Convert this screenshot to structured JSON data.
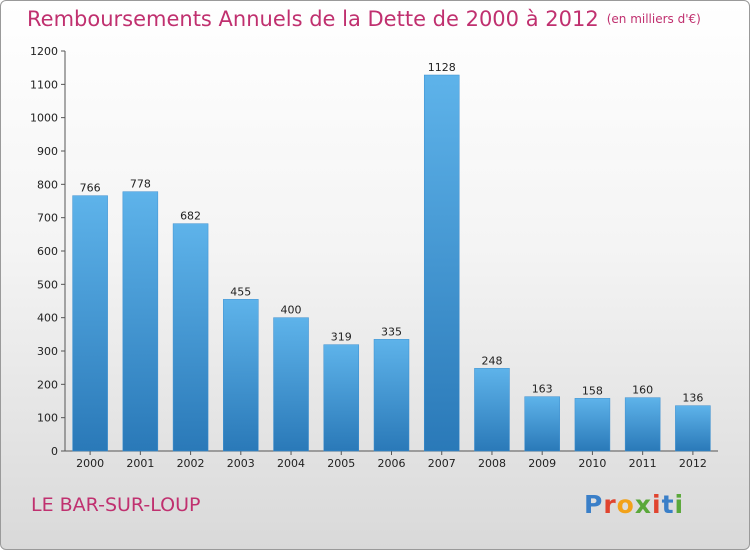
{
  "header": {
    "title": "Remboursements Annuels de la Dette de 2000 à 2012",
    "unit": "(en milliers d'€)"
  },
  "footer": {
    "commune": "LE BAR-SUR-LOUP",
    "logo_letters": [
      "P",
      "r",
      "o",
      "x",
      "i",
      "t",
      "i"
    ],
    "logo_colors": [
      "#3a7fc8",
      "#e0442f",
      "#f2a21a",
      "#5aa83a",
      "#e0442f",
      "#3a7fc8",
      "#5aa83a"
    ]
  },
  "colors": {
    "bar_light": "#5eb3ea",
    "bar_dark": "#2a79b8",
    "text_accent": "#c0306f"
  },
  "chart_data": {
    "type": "bar",
    "categories": [
      "2000",
      "2001",
      "2002",
      "2003",
      "2004",
      "2005",
      "2006",
      "2007",
      "2008",
      "2009",
      "2010",
      "2011",
      "2012"
    ],
    "values": [
      766,
      778,
      682,
      455,
      400,
      319,
      335,
      1128,
      248,
      163,
      158,
      160,
      136
    ],
    "yticks": [
      0,
      100,
      200,
      300,
      400,
      500,
      600,
      700,
      800,
      900,
      1000,
      1100,
      1200
    ],
    "ylim": [
      0,
      1200
    ],
    "grid": false
  }
}
